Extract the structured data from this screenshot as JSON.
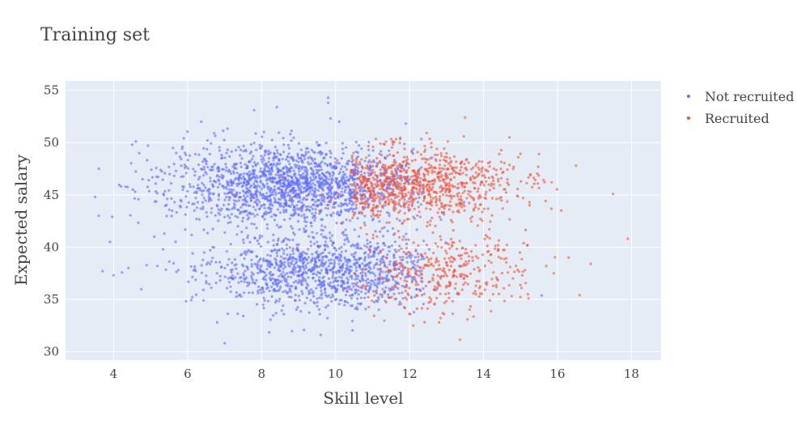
{
  "chart_data": {
    "type": "scatter",
    "title": "Training set",
    "xlabel": "Skill level",
    "ylabel": "Expected salary",
    "xlim": [
      2.7,
      18.8
    ],
    "ylim": [
      29.2,
      55.9
    ],
    "xticks": [
      4,
      6,
      8,
      10,
      12,
      14,
      16,
      18
    ],
    "yticks": [
      30,
      35,
      40,
      45,
      50,
      55
    ],
    "grid": true,
    "legend_position": "top-right",
    "series": [
      {
        "name": "Not recruited",
        "color": "#636efa",
        "clusters": [
          {
            "cx": 8.8,
            "cy": 46.0,
            "sx": 1.6,
            "sy": 1.9,
            "n": 1700
          },
          {
            "cx": 9.6,
            "cy": 37.8,
            "sx": 1.6,
            "sy": 1.8,
            "n": 1150
          }
        ],
        "points": [
          [
            3.5,
            44.8
          ],
          [
            3.6,
            47.5
          ],
          [
            3.7,
            37.7
          ],
          [
            4.0,
            37.3
          ],
          [
            3.6,
            43.0
          ],
          [
            3.9,
            40.5
          ],
          [
            4.5,
            49.8
          ],
          [
            4.6,
            50.1
          ],
          [
            4.4,
            38.0
          ],
          [
            7.0,
            30.8
          ],
          [
            9.6,
            31.6
          ],
          [
            9.8,
            54.3
          ],
          [
            9.8,
            53.8
          ],
          [
            7.8,
            53.1
          ],
          [
            10.1,
            52.0
          ],
          [
            6.8,
            32.8
          ],
          [
            4.2,
            45.8
          ],
          [
            5.1,
            41.0
          ]
        ]
      },
      {
        "name": "Recruited",
        "color": "#ef553b",
        "clusters": [
          {
            "cx": 12.2,
            "cy": 46.0,
            "sx": 1.3,
            "sy": 1.7,
            "n": 900
          },
          {
            "cx": 12.9,
            "cy": 37.6,
            "sx": 1.2,
            "sy": 1.9,
            "n": 380
          }
        ],
        "points": [
          [
            17.9,
            40.8
          ],
          [
            17.5,
            45.1
          ],
          [
            16.6,
            35.4
          ],
          [
            16.9,
            38.4
          ],
          [
            16.5,
            47.8
          ],
          [
            15.5,
            48.9
          ],
          [
            14.7,
            50.5
          ],
          [
            13.5,
            52.4
          ],
          [
            15.9,
            37.5
          ],
          [
            16.3,
            39.0
          ],
          [
            16.1,
            43.5
          ],
          [
            12.1,
            32.5
          ],
          [
            12.8,
            32.8
          ],
          [
            15.2,
            35.5
          ]
        ]
      }
    ]
  }
}
